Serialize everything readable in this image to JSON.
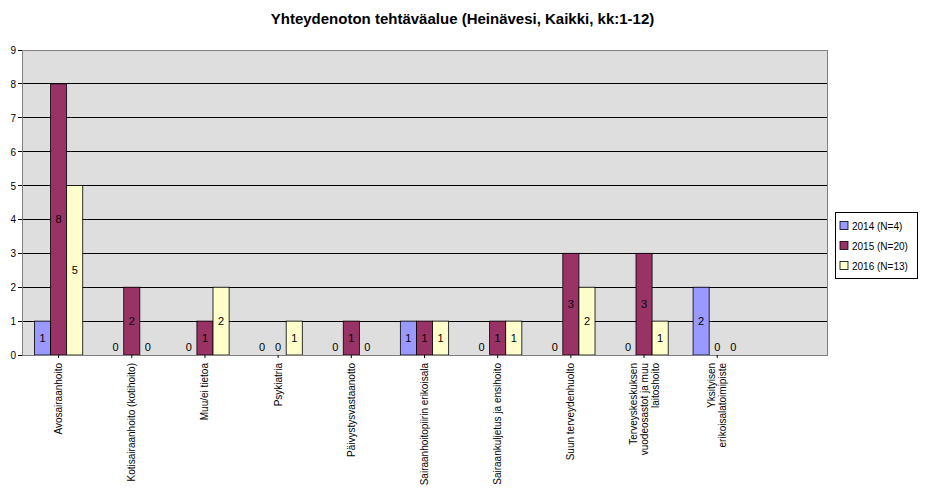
{
  "chart_data": {
    "type": "bar",
    "title": "Yhteydenoton tehtäväalue (Heinävesi, Kaikki, kk:1-12)",
    "categories": [
      "Avosairaanhoito",
      "Kotisairaanhoito (kotihoito)",
      "Muu/ei tietoa",
      "Psykiatria",
      "Päivystysvastaanotto",
      "Sairaanhoitopiirin erikoisala",
      "Sairaankuljetus ja ensihoito",
      "Suun terveydenhuolto",
      "Terveyskeskuksen vuodeosastot ja muu laitoshoito",
      "Yksityisen erikoisalatoimipiste"
    ],
    "series": [
      {
        "name": "2014 (N=4)",
        "color": "#9999ff",
        "values": [
          1,
          0,
          0,
          0,
          0,
          1,
          0,
          0,
          0,
          2
        ]
      },
      {
        "name": "2015 (N=20)",
        "color": "#993366",
        "values": [
          8,
          2,
          1,
          0,
          1,
          1,
          1,
          3,
          3,
          0
        ]
      },
      {
        "name": "2016 (N=13)",
        "color": "#ffffcc",
        "values": [
          5,
          0,
          2,
          1,
          0,
          1,
          1,
          2,
          1,
          0
        ]
      }
    ],
    "ylim": [
      0,
      9
    ],
    "yticks": [
      0,
      1,
      2,
      3,
      4,
      5,
      6,
      7,
      8,
      9
    ],
    "grid": true,
    "legend": "right",
    "data_labels": true
  }
}
